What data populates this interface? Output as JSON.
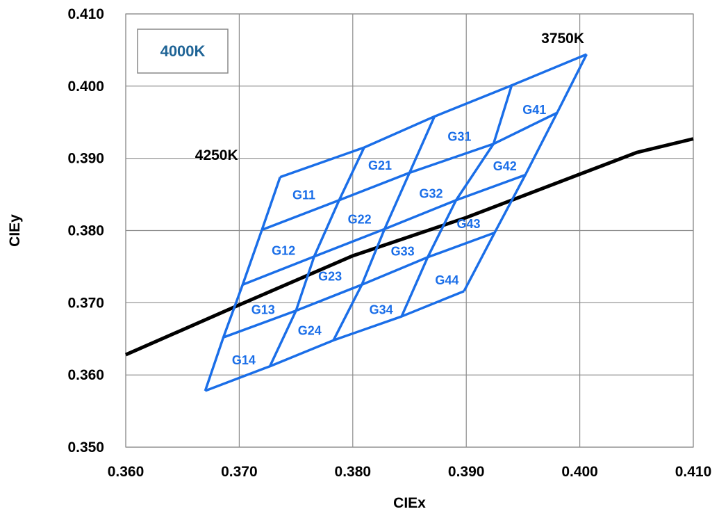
{
  "chart_data": {
    "type": "line",
    "title": "",
    "xlabel": "CIEx",
    "ylabel": "CIEy",
    "xlim": [
      0.36,
      0.41
    ],
    "ylim": [
      0.35,
      0.41
    ],
    "x_ticks": [
      "0.360",
      "0.370",
      "0.380",
      "0.390",
      "0.400",
      "0.410"
    ],
    "y_ticks": [
      "0.350",
      "0.360",
      "0.370",
      "0.380",
      "0.390",
      "0.400",
      "0.410"
    ],
    "grid": true,
    "legend_box": {
      "text": "4000K",
      "placement": "top-left"
    },
    "colors": {
      "bins": "#1a6ee8",
      "locus": "#000000",
      "legend_text": "#1f6496"
    },
    "corner_labels": [
      {
        "text": "4250K",
        "x": 0.368,
        "y": 0.3903
      },
      {
        "text": "3750K",
        "x": 0.3985,
        "y": 0.4065
      }
    ],
    "locus_series": {
      "x": [
        0.36,
        0.37,
        0.38,
        0.39,
        0.4,
        0.405,
        0.41
      ],
      "y": [
        0.3628,
        0.3697,
        0.3765,
        0.3818,
        0.3878,
        0.3908,
        0.3927
      ]
    },
    "grid_corner_points": {
      "comment_rows": "rows k=0..4 from top edge to bottom edge; columns j=0..4 from left edge to right edge",
      "points": [
        [
          [
            0.3736,
            0.3874
          ],
          [
            0.381,
            0.3915
          ],
          [
            0.3872,
            0.3958
          ],
          [
            0.394,
            0.4001
          ],
          [
            0.4006,
            0.4044
          ]
        ],
        [
          [
            0.372,
            0.3801
          ],
          [
            0.3788,
            0.3842
          ],
          [
            0.385,
            0.388
          ],
          [
            0.3924,
            0.392
          ],
          [
            0.398,
            0.3963
          ]
        ],
        [
          [
            0.3703,
            0.3725
          ],
          [
            0.3766,
            0.3764
          ],
          [
            0.3828,
            0.3802
          ],
          [
            0.3891,
            0.3842
          ],
          [
            0.3952,
            0.3877
          ]
        ],
        [
          [
            0.3686,
            0.3652
          ],
          [
            0.375,
            0.3689
          ],
          [
            0.3808,
            0.3725
          ],
          [
            0.3866,
            0.3763
          ],
          [
            0.3925,
            0.3797
          ]
        ],
        [
          [
            0.367,
            0.3578
          ],
          [
            0.3727,
            0.3612
          ],
          [
            0.3783,
            0.3648
          ],
          [
            0.3843,
            0.3681
          ],
          [
            0.3898,
            0.3716
          ]
        ]
      ]
    },
    "bins": [
      {
        "name": "G11",
        "x": 0.3757,
        "y": 0.3848
      },
      {
        "name": "G21",
        "x": 0.3824,
        "y": 0.3889
      },
      {
        "name": "G31",
        "x": 0.3894,
        "y": 0.3929
      },
      {
        "name": "G41",
        "x": 0.396,
        "y": 0.3966
      },
      {
        "name": "G12",
        "x": 0.3739,
        "y": 0.3771
      },
      {
        "name": "G22",
        "x": 0.3806,
        "y": 0.3814
      },
      {
        "name": "G32",
        "x": 0.3869,
        "y": 0.385
      },
      {
        "name": "G42",
        "x": 0.3934,
        "y": 0.3888
      },
      {
        "name": "G13",
        "x": 0.3721,
        "y": 0.3689
      },
      {
        "name": "G23",
        "x": 0.378,
        "y": 0.3735
      },
      {
        "name": "G33",
        "x": 0.3844,
        "y": 0.377
      },
      {
        "name": "G43",
        "x": 0.3902,
        "y": 0.3808
      },
      {
        "name": "G14",
        "x": 0.3704,
        "y": 0.3619
      },
      {
        "name": "G24",
        "x": 0.3762,
        "y": 0.366
      },
      {
        "name": "G34",
        "x": 0.3825,
        "y": 0.3689
      },
      {
        "name": "G44",
        "x": 0.3883,
        "y": 0.373
      }
    ]
  }
}
